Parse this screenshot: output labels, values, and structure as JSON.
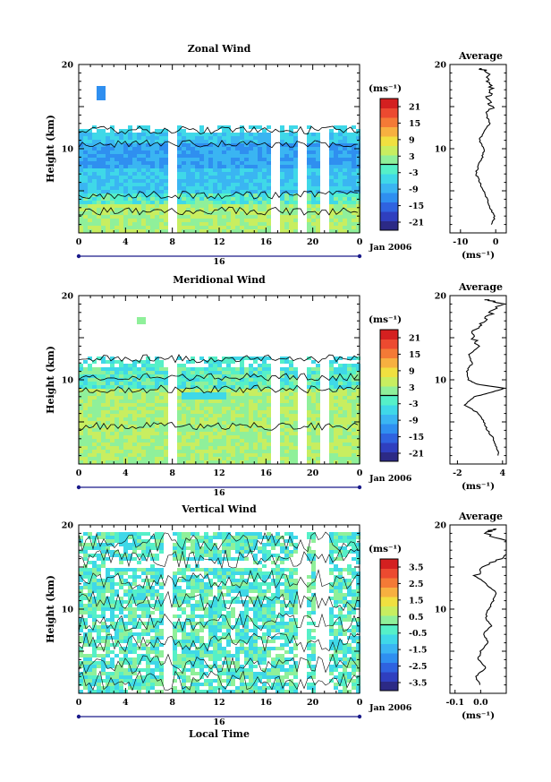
{
  "figure": {
    "xlabel": "Local Time",
    "date_label": "Jan 2006",
    "day_label": "16",
    "ylabel": "Height (km)",
    "unit_label": "(ms⁻¹)",
    "average_title": "Average",
    "average_unit": "(ms⁻¹)"
  },
  "colormap": [
    "#2c2a86",
    "#2f3fbf",
    "#2f63e0",
    "#2f8ff0",
    "#3ab5f2",
    "#3fd8e8",
    "#55f0c8",
    "#8ff09a",
    "#c8ee60",
    "#f0e040",
    "#f7b040",
    "#f47a36",
    "#ec4a30",
    "#d42020"
  ],
  "chart_data": [
    {
      "type": "heatmap",
      "title": "Zonal Wind",
      "x": [
        0,
        4,
        8,
        12,
        16,
        20,
        0
      ],
      "x_range": [
        0,
        24
      ],
      "ylim": [
        0,
        20
      ],
      "y_ticks": [
        10,
        20
      ],
      "colorbar_ticks": [
        "21",
        "15",
        "9",
        "3",
        "-3",
        "-9",
        "-15",
        "-21"
      ],
      "colorbar_range": [
        -24,
        24
      ],
      "profile": [
        [
          -1.0,
          1
        ],
        [
          -0.3,
          2
        ],
        [
          -1.8,
          3
        ],
        [
          -2.5,
          4
        ],
        [
          -3.5,
          5
        ],
        [
          -4.5,
          6
        ],
        [
          -5.6,
          7
        ],
        [
          -5.0,
          8
        ],
        [
          -3.8,
          9
        ],
        [
          -3.2,
          10
        ],
        [
          -4.6,
          11
        ],
        [
          -3.5,
          12
        ],
        [
          -1.5,
          13
        ],
        [
          -2.8,
          14
        ],
        [
          -1.0,
          15
        ],
        [
          -2.0,
          16
        ],
        [
          -1.2,
          17
        ],
        [
          -2.0,
          18
        ],
        [
          -2.0,
          19
        ],
        [
          -4.0,
          19.5
        ]
      ],
      "profile_xlim": [
        -13,
        3
      ],
      "profile_xticks": [
        "-10",
        "0"
      ]
    },
    {
      "type": "heatmap",
      "title": "Meridional Wind",
      "x": [
        0,
        4,
        8,
        12,
        16,
        20,
        0
      ],
      "x_range": [
        0,
        24
      ],
      "ylim": [
        0,
        20
      ],
      "y_ticks": [
        10,
        20
      ],
      "colorbar_ticks": [
        "21",
        "15",
        "9",
        "3",
        "-3",
        "-9",
        "-15",
        "-21"
      ],
      "colorbar_range": [
        -24,
        24
      ],
      "profile": [
        [
          3.5,
          1
        ],
        [
          3.2,
          2
        ],
        [
          2.8,
          3
        ],
        [
          2.0,
          4
        ],
        [
          1.5,
          5
        ],
        [
          0.8,
          6
        ],
        [
          -1.0,
          7
        ],
        [
          0.3,
          8
        ],
        [
          2.5,
          8.5
        ],
        [
          4.2,
          9
        ],
        [
          0.5,
          9.5
        ],
        [
          -0.5,
          10
        ],
        [
          -0.8,
          11
        ],
        [
          0.0,
          12
        ],
        [
          -0.5,
          13
        ],
        [
          1.0,
          14
        ],
        [
          0.0,
          15
        ],
        [
          0.5,
          16
        ],
        [
          1.5,
          17
        ],
        [
          2.5,
          18
        ],
        [
          4.0,
          19
        ],
        [
          2.0,
          19.5
        ]
      ],
      "profile_xlim": [
        -3,
        4.5
      ],
      "profile_xticks": [
        "-2",
        "4"
      ]
    },
    {
      "type": "heatmap",
      "title": "Vertical Wind",
      "x": [
        0,
        4,
        8,
        12,
        16,
        20,
        0
      ],
      "x_range": [
        0,
        24
      ],
      "ylim": [
        0,
        20
      ],
      "y_ticks": [
        10,
        20
      ],
      "colorbar_ticks": [
        "3.5",
        "2.5",
        "1.5",
        "0.5",
        "-0.5",
        "-1.5",
        "-2.5",
        "-3.5"
      ],
      "colorbar_range": [
        -4,
        4
      ],
      "profile": [
        [
          0.0,
          1
        ],
        [
          -0.02,
          2
        ],
        [
          0.02,
          3
        ],
        [
          -0.01,
          4
        ],
        [
          0.0,
          5
        ],
        [
          0.03,
          6
        ],
        [
          0.01,
          7
        ],
        [
          0.04,
          8
        ],
        [
          0.02,
          9
        ],
        [
          0.03,
          10
        ],
        [
          0.05,
          11
        ],
        [
          0.06,
          12
        ],
        [
          0.02,
          13
        ],
        [
          -0.02,
          14
        ],
        [
          0.01,
          15
        ],
        [
          0.08,
          16
        ],
        [
          0.12,
          17
        ],
        [
          0.1,
          18
        ],
        [
          0.02,
          19
        ],
        [
          0.05,
          19.5
        ]
      ],
      "profile_xlim": [
        -0.12,
        0.1
      ],
      "profile_xticks": [
        "-0.1",
        "0.0"
      ]
    }
  ]
}
